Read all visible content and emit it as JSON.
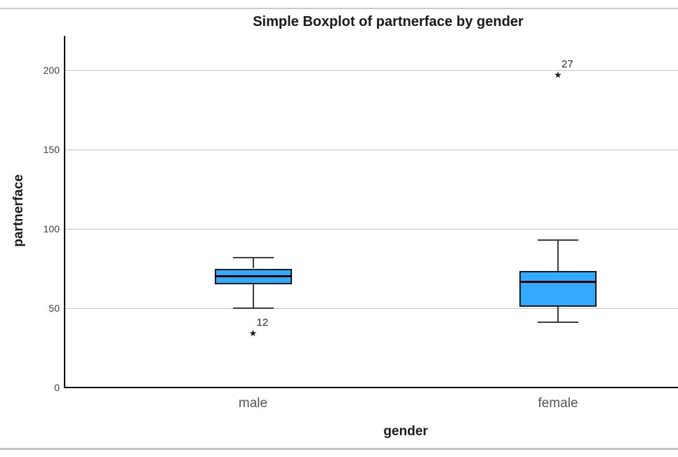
{
  "chart_data": {
    "type": "boxplot",
    "title": "Simple Boxplot of partnerface by gender",
    "xlabel": "gender",
    "ylabel": "partnerface",
    "categories": [
      "male",
      "female"
    ],
    "yticks": [
      0,
      50,
      100,
      150,
      200
    ],
    "ylim": [
      0,
      222
    ],
    "grid": "horizontal-light-gray",
    "legend": "none",
    "boxes": [
      {
        "category": "male",
        "whisker_low": 50,
        "q1": 65,
        "median": 70,
        "q3": 75,
        "whisker_high": 82,
        "outliers": [
          {
            "value": 34,
            "label": "12",
            "symbol": "extreme-star"
          }
        ]
      },
      {
        "category": "female",
        "whisker_low": 41,
        "q1": 51,
        "median": 66.5,
        "q3": 73.5,
        "whisker_high": 93,
        "outliers": [
          {
            "value": 197,
            "label": "27",
            "symbol": "extreme-star"
          }
        ]
      }
    ],
    "colors": {
      "box_fill": "#33AAFF",
      "box_border": "#1c1c1c",
      "median": "#000000",
      "whisker": "#3d3d3d",
      "gridline": "#c7c7c7",
      "axis": "#000000",
      "tick_label": "#3f3f3f",
      "category_label": "#565656",
      "outlier": "#1a1a1a"
    },
    "outlier_glyph": "★"
  }
}
